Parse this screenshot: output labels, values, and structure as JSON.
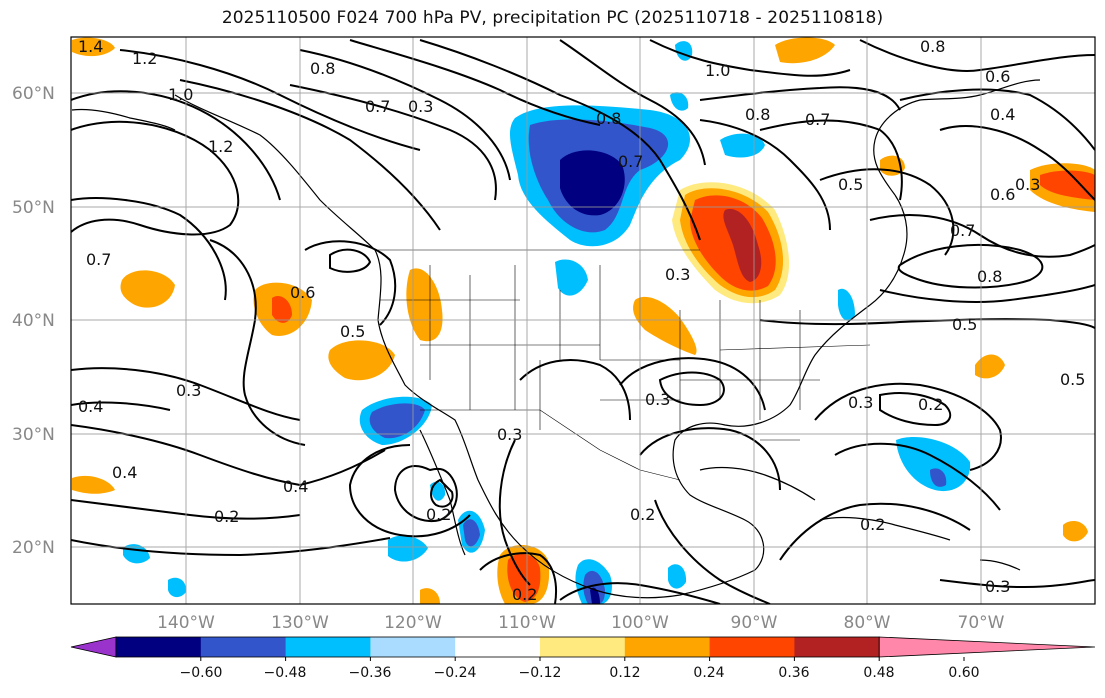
{
  "title": "2025110500 F024 700 hPa PV, precipitation PC (2025110718 - 2025110818)",
  "map": {
    "lat_labels": [
      "60°N",
      "50°N",
      "40°N",
      "30°N",
      "20°N"
    ],
    "lon_labels": [
      "140°W",
      "130°W",
      "120°W",
      "110°W",
      "100°W",
      "90°W",
      "80°W",
      "70°W"
    ],
    "contour_labels": [
      "1.4",
      "1.2",
      "1.0",
      "0.8",
      "0.7",
      "0.3",
      "0.8",
      "0.7",
      "1.0",
      "0.8",
      "0.7",
      "0.6",
      "0.8",
      "0.4",
      "0.3",
      "1.2",
      "0.7",
      "0.6",
      "0.5",
      "0.3",
      "0.4",
      "0.2",
      "0.4",
      "0.3",
      "0.2",
      "0.3",
      "0.2",
      "0.5",
      "0.6",
      "0.7",
      "0.8",
      "0.3",
      "0.5",
      "0.2",
      "0.5",
      "0.4",
      "0.3",
      "0.2",
      "0.3",
      "0.2"
    ]
  },
  "colorbar": {
    "ticks": [
      "−0.60",
      "−0.48",
      "−0.36",
      "−0.24",
      "−0.12",
      "0.12",
      "0.24",
      "0.36",
      "0.48",
      "0.60"
    ],
    "colors": [
      "#9933cc",
      "#000080",
      "#3355cc",
      "#00bfff",
      "#aadcff",
      "#ffffff",
      "#ffea80",
      "#ffa500",
      "#ff4500",
      "#b22222",
      "#ff88aa"
    ]
  }
}
